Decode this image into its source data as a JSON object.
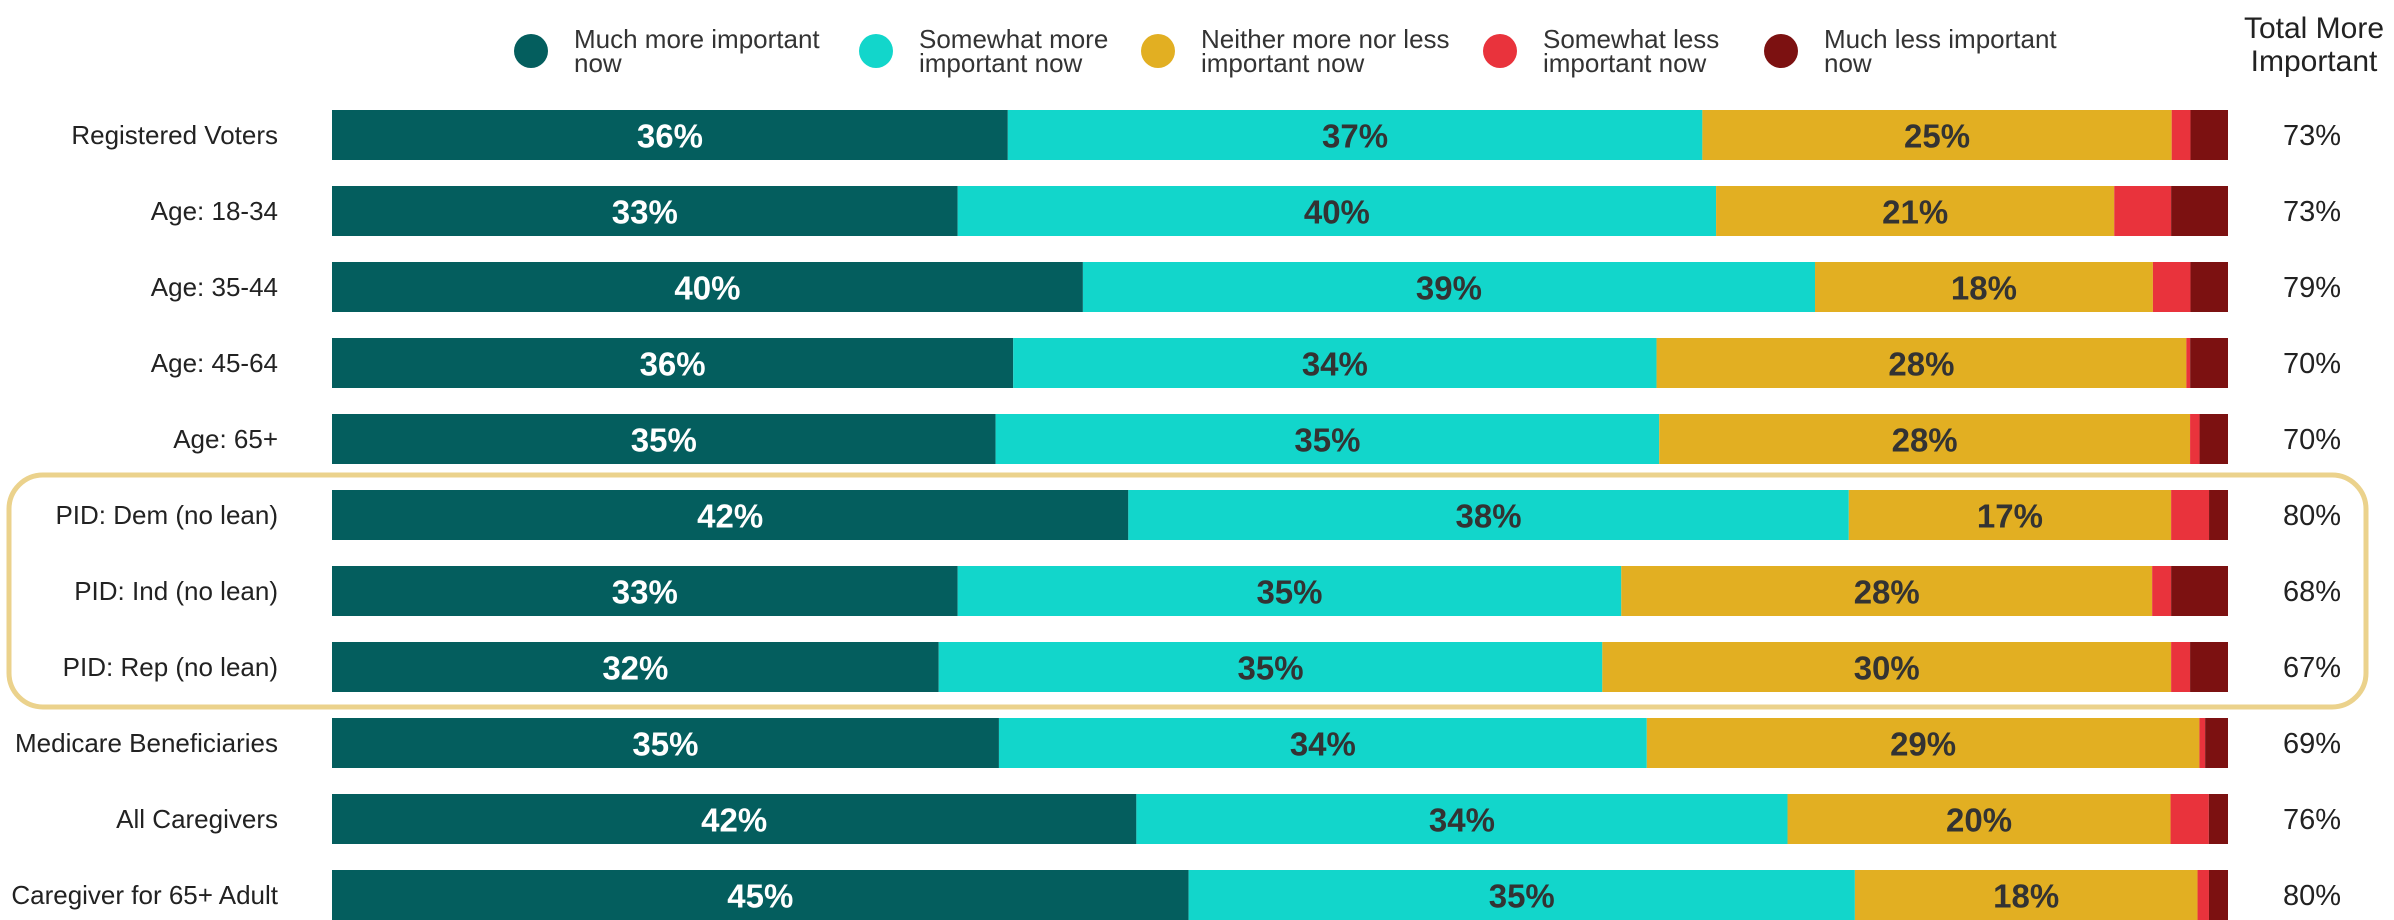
{
  "chart_data": {
    "type": "bar",
    "orientation": "horizontal",
    "stacked": true,
    "legend_position": "top",
    "total_column_header": [
      "Total More",
      "Important"
    ],
    "series": [
      {
        "name": [
          "Much more important",
          "now"
        ],
        "color": "#045E5E",
        "label_color": "#FFFFFF"
      },
      {
        "name": [
          "Somewhat more",
          "important now"
        ],
        "color": "#12D6CB",
        "label_color": "#333333"
      },
      {
        "name": [
          "Neither more nor less",
          "important now"
        ],
        "color": "#E2AF22",
        "label_color": "#333333"
      },
      {
        "name": [
          "Somewhat less",
          "important now"
        ],
        "color": "#E9333C",
        "label_color": "#FFFFFF"
      },
      {
        "name": [
          "Much less important",
          "now"
        ],
        "color": "#7C1111",
        "label_color": "#FFFFFF"
      }
    ],
    "categories": [
      "Registered Voters",
      "Age: 18-34",
      "Age: 35-44",
      "Age: 45-64",
      "Age: 65+",
      "PID: Dem (no lean)",
      "PID: Ind (no lean)",
      "PID: Rep (no lean)",
      "Medicare Beneficiaries",
      "All Caregivers",
      "Caregiver for 65+ Adult"
    ],
    "rows": [
      {
        "values": [
          36,
          37,
          25,
          1,
          2
        ],
        "total": "73%"
      },
      {
        "values": [
          33,
          40,
          21,
          3,
          3
        ],
        "total": "73%"
      },
      {
        "values": [
          40,
          39,
          18,
          2,
          2
        ],
        "total": "79%"
      },
      {
        "values": [
          36,
          34,
          28,
          0.2,
          2
        ],
        "total": "70%"
      },
      {
        "values": [
          35,
          35,
          28,
          0.5,
          1.5
        ],
        "total": "70%"
      },
      {
        "values": [
          42,
          38,
          17,
          2,
          1
        ],
        "total": "80%"
      },
      {
        "values": [
          33,
          35,
          28,
          1,
          3
        ],
        "total": "68%"
      },
      {
        "values": [
          32,
          35,
          30,
          1,
          2
        ],
        "total": "67%"
      },
      {
        "values": [
          35,
          34,
          29,
          0.3,
          1.2
        ],
        "total": "69%"
      },
      {
        "values": [
          42,
          34,
          20,
          2,
          1
        ],
        "total": "76%"
      },
      {
        "values": [
          45,
          35,
          18,
          0.6,
          1
        ],
        "total": "80%"
      }
    ],
    "labeled_series": [
      0,
      1,
      2
    ],
    "value_suffix": "%",
    "highlight": {
      "from_row": 5,
      "to_row": 7,
      "color": "#EBD28C"
    }
  }
}
